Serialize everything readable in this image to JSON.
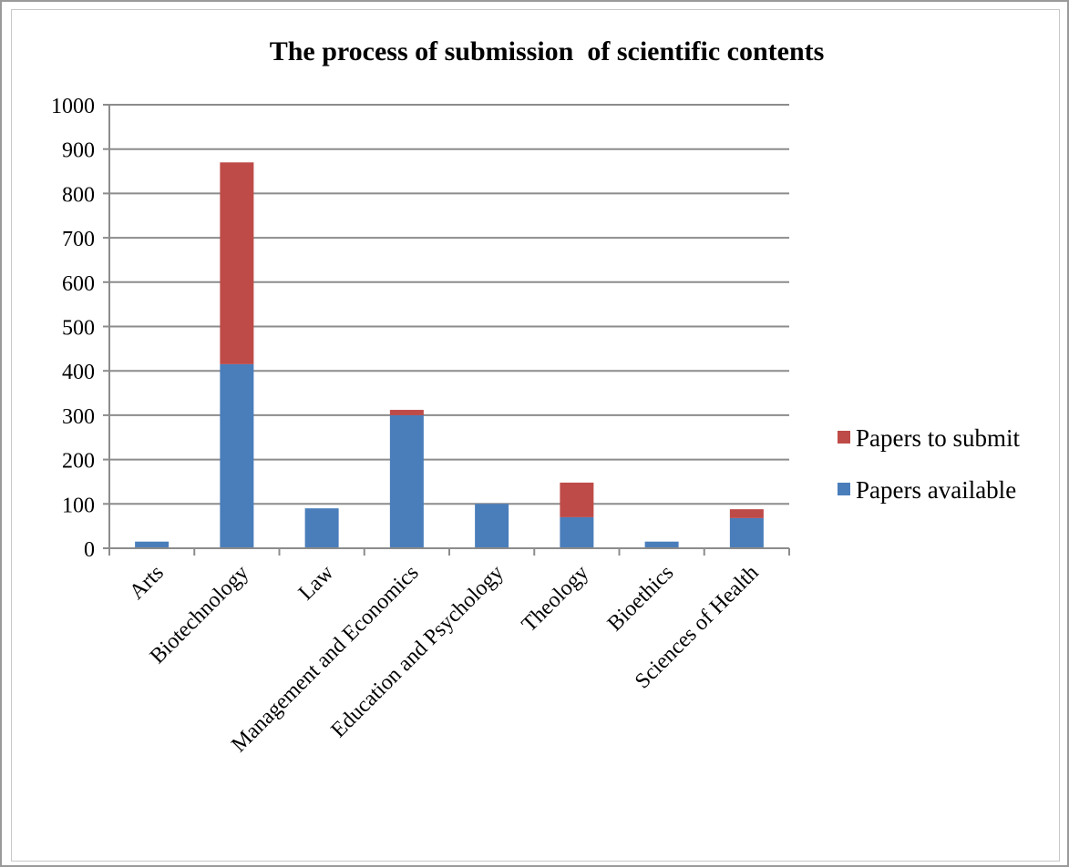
{
  "chart_data": {
    "type": "bar",
    "stacked": true,
    "title": "The process of submission  of scientific contents",
    "xlabel": "",
    "ylabel": "",
    "ylim": [
      0,
      1000
    ],
    "yticks": [
      0,
      100,
      200,
      300,
      400,
      500,
      600,
      700,
      800,
      900,
      1000
    ],
    "grid": true,
    "legend_position": "right",
    "categories": [
      "Arts",
      "Biotechnology",
      "Law",
      "Management and Economics",
      "Education and Psychology",
      "Theology",
      "Bioethics",
      "Sciences of Health"
    ],
    "series": [
      {
        "name": "Papers available",
        "color": "#4a7ebb",
        "values": [
          15,
          415,
          90,
          300,
          100,
          70,
          15,
          68
        ]
      },
      {
        "name": "Papers to submit",
        "color": "#be4b48",
        "values": [
          0,
          455,
          0,
          12,
          0,
          78,
          0,
          20
        ]
      }
    ],
    "legend_order": [
      "Papers to submit",
      "Papers available"
    ]
  }
}
